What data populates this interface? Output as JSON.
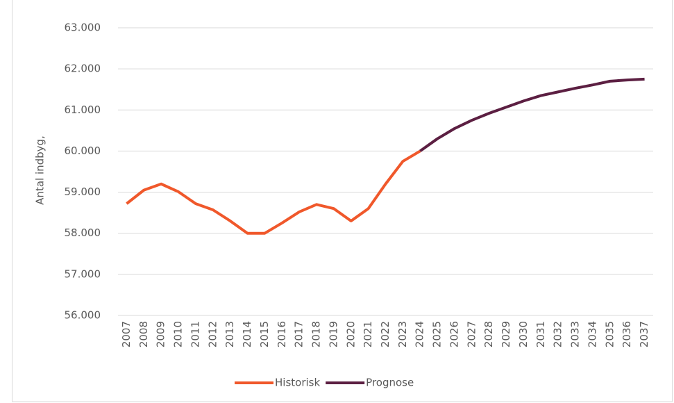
{
  "chart_data": {
    "type": "line",
    "y_label": "Antal indbyg,",
    "categories": [
      "2007",
      "2008",
      "2009",
      "2010",
      "2011",
      "2012",
      "2013",
      "2014",
      "2015",
      "2016",
      "2017",
      "2018",
      "2019",
      "2020",
      "2021",
      "2022",
      "2023",
      "2024",
      "2025",
      "2026",
      "2027",
      "2028",
      "2029",
      "2030",
      "2031",
      "2032",
      "2033",
      "2034",
      "2035",
      "2036",
      "2037"
    ],
    "series": [
      {
        "name": "Historisk",
        "color": "#f0582b",
        "values": [
          58720,
          59050,
          59200,
          59010,
          58720,
          58570,
          58300,
          58000,
          58000,
          58250,
          58520,
          58700,
          58600,
          58300,
          58600,
          59200,
          59750,
          60000,
          null,
          null,
          null,
          null,
          null,
          null,
          null,
          null,
          null,
          null,
          null,
          null,
          null
        ]
      },
      {
        "name": "Prognose",
        "color": "#5c1f42",
        "values": [
          null,
          null,
          null,
          null,
          null,
          null,
          null,
          null,
          null,
          null,
          null,
          null,
          null,
          null,
          null,
          null,
          null,
          60000,
          60300,
          60550,
          60750,
          60920,
          61070,
          61220,
          61350,
          61440,
          61530,
          61610,
          61700,
          61730,
          61750
        ]
      }
    ],
    "ylim": [
      56000,
      63000
    ],
    "yticks": [
      {
        "value": 56000,
        "label": "56.000"
      },
      {
        "value": 57000,
        "label": "57.000"
      },
      {
        "value": 58000,
        "label": "58.000"
      },
      {
        "value": 59000,
        "label": "59.000"
      },
      {
        "value": 60000,
        "label": "60.000"
      },
      {
        "value": 61000,
        "label": "61.000"
      },
      {
        "value": 62000,
        "label": "62.000"
      },
      {
        "value": 63000,
        "label": "63.000"
      }
    ],
    "grid": true,
    "legend": "bottom"
  }
}
